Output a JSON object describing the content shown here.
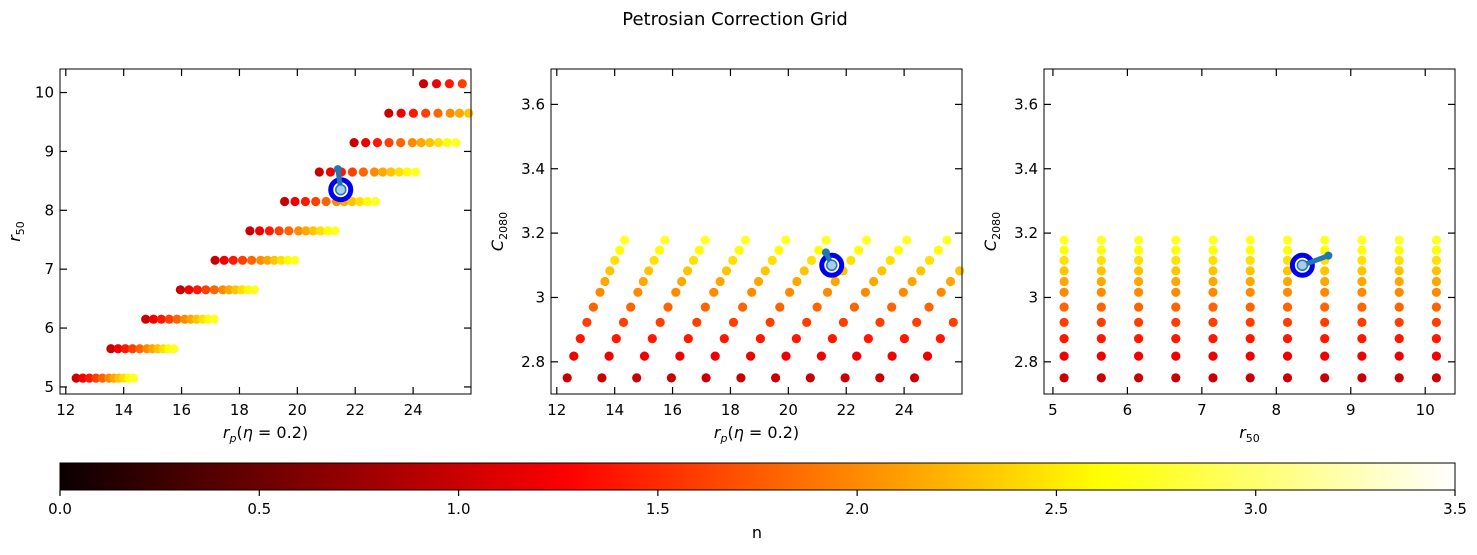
{
  "figure": {
    "title": "Petrosian Correction Grid"
  },
  "colorbar": {
    "label": "n",
    "min": 0.0,
    "max": 3.5,
    "ticks": [
      "0.0",
      "0.5",
      "1.0",
      "1.5",
      "2.0",
      "2.5",
      "3.0",
      "3.5"
    ],
    "colormap": "hot",
    "colors": [
      "#0b0000",
      "#ff0000",
      "#ffff00",
      "#ffffff"
    ]
  },
  "chart_data": [
    {
      "type": "scatter",
      "xlabel": "r_p(η = 0.2)",
      "ylabel": "r_50",
      "xlim": [
        11.8,
        26.0
      ],
      "ylim": [
        4.88,
        10.4
      ],
      "xticks": [
        12,
        14,
        16,
        18,
        20,
        22,
        24
      ],
      "yticks": [
        5,
        6,
        7,
        8,
        9,
        10
      ],
      "marker": {
        "x": 21.5,
        "y": 8.35
      },
      "arrow": {
        "from": [
          21.5,
          8.35
        ],
        "to": [
          21.4,
          8.7
        ]
      }
    },
    {
      "type": "scatter",
      "xlabel": "r_p(η = 0.2)",
      "ylabel": "C_2080",
      "xlim": [
        11.8,
        26.0
      ],
      "ylim": [
        2.7,
        3.71
      ],
      "xticks": [
        12,
        14,
        16,
        18,
        20,
        22,
        24
      ],
      "yticks": [
        2.8,
        3.0,
        3.2,
        3.4,
        3.6
      ],
      "marker": {
        "x": 21.5,
        "y": 3.1
      },
      "arrow": {
        "from": [
          21.5,
          3.1
        ],
        "to": [
          21.3,
          3.14
        ]
      }
    },
    {
      "type": "scatter",
      "xlabel": "r_50",
      "ylabel": "C_2080",
      "xlim": [
        4.88,
        10.4
      ],
      "ylim": [
        2.7,
        3.71
      ],
      "xticks": [
        5,
        6,
        7,
        8,
        9,
        10
      ],
      "yticks": [
        2.8,
        3.0,
        3.2,
        3.4,
        3.6
      ],
      "marker": {
        "x": 8.35,
        "y": 3.1
      },
      "arrow": {
        "from": [
          8.35,
          3.1
        ],
        "to": [
          8.7,
          3.13
        ]
      }
    }
  ]
}
